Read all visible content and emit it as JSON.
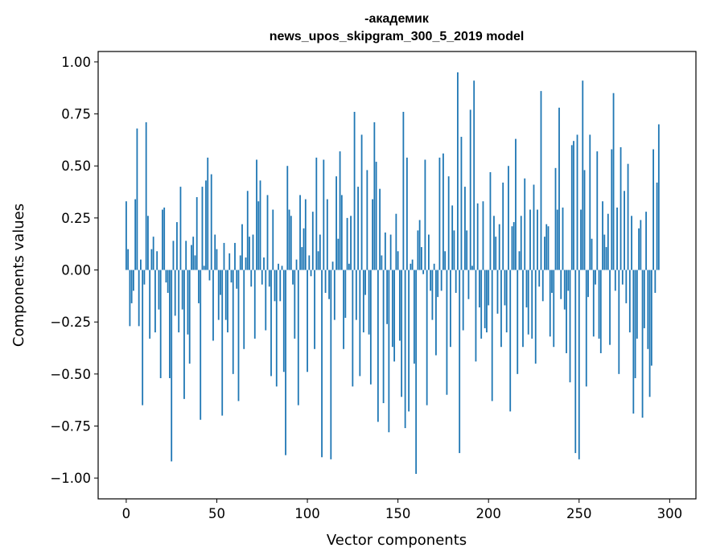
{
  "chart_data": {
    "type": "bar",
    "title_line1": "-академик",
    "title_line2": "news_upos_skipgram_300_5_2019 model",
    "xlabel": "Vector components",
    "ylabel": "Components values",
    "xlim": [
      -15.5,
      314.5
    ],
    "ylim": [
      -1.1,
      1.05
    ],
    "xticks": [
      0,
      50,
      100,
      150,
      200,
      250,
      300
    ],
    "xtick_labels": [
      "0",
      "50",
      "100",
      "150",
      "200",
      "250",
      "300"
    ],
    "yticks": [
      -1.0,
      -0.75,
      -0.5,
      -0.25,
      0.0,
      0.25,
      0.5,
      0.75,
      1.0
    ],
    "ytick_labels": [
      "−1.00",
      "−0.75",
      "−0.50",
      "−0.25",
      "0.00",
      "0.25",
      "0.50",
      "0.75",
      "1.00"
    ],
    "bar_color": "#1f77b4",
    "grid": false,
    "values": [
      0.33,
      0.1,
      -0.27,
      -0.16,
      -0.1,
      0.34,
      0.68,
      -0.27,
      0.05,
      -0.65,
      -0.07,
      0.71,
      0.26,
      -0.33,
      0.1,
      0.16,
      -0.3,
      0.09,
      -0.19,
      -0.52,
      0.29,
      0.3,
      -0.06,
      -0.11,
      -0.52,
      -0.92,
      0.14,
      -0.22,
      0.23,
      -0.3,
      0.4,
      -0.19,
      -0.62,
      0.14,
      -0.31,
      -0.45,
      0.12,
      0.16,
      0.07,
      0.35,
      -0.16,
      -0.72,
      0.4,
      0.02,
      0.43,
      0.54,
      -0.05,
      0.46,
      -0.34,
      0.17,
      0.1,
      -0.24,
      -0.12,
      -0.7,
      0.13,
      -0.24,
      -0.3,
      0.08,
      -0.06,
      -0.5,
      0.13,
      -0.09,
      -0.63,
      0.07,
      0.22,
      -0.38,
      0.06,
      0.38,
      0.16,
      -0.08,
      0.17,
      -0.33,
      0.53,
      0.33,
      0.43,
      -0.07,
      0.06,
      -0.29,
      0.36,
      -0.08,
      -0.51,
      0.29,
      -0.15,
      -0.56,
      0.03,
      -0.15,
      0.02,
      -0.49,
      -0.89,
      0.5,
      0.29,
      0.26,
      -0.07,
      -0.33,
      0.05,
      -0.65,
      0.36,
      0.11,
      0.2,
      0.34,
      -0.49,
      0.07,
      -0.03,
      0.28,
      -0.38,
      0.54,
      0.09,
      0.17,
      -0.9,
      0.53,
      -0.11,
      0.34,
      -0.14,
      -0.91,
      0.04,
      -0.24,
      0.45,
      0.15,
      0.57,
      0.36,
      -0.38,
      -0.23,
      0.25,
      0.03,
      0.26,
      -0.56,
      0.76,
      -0.24,
      0.4,
      -0.51,
      0.65,
      -0.3,
      -0.12,
      0.48,
      -0.31,
      -0.55,
      0.34,
      0.71,
      0.52,
      -0.73,
      0.39,
      0.07,
      -0.64,
      0.18,
      -0.26,
      -0.78,
      0.17,
      -0.37,
      -0.44,
      0.27,
      0.09,
      -0.34,
      -0.61,
      0.76,
      -0.76,
      0.54,
      -0.68,
      0.03,
      0.05,
      -0.45,
      -0.98,
      0.19,
      0.24,
      0.11,
      -0.02,
      0.53,
      -0.65,
      0.17,
      -0.1,
      -0.24,
      0.03,
      -0.41,
      -0.13,
      0.54,
      -0.1,
      0.56,
      0.09,
      -0.6,
      0.45,
      -0.37,
      0.31,
      0.19,
      -0.11,
      0.95,
      -0.88,
      0.64,
      -0.29,
      0.4,
      0.19,
      -0.14,
      0.77,
      0.02,
      0.91,
      -0.44,
      0.32,
      -0.18,
      -0.33,
      0.33,
      -0.28,
      -0.3,
      -0.17,
      0.47,
      -0.63,
      0.26,
      0.16,
      -0.21,
      0.22,
      -0.37,
      0.42,
      -0.17,
      -0.3,
      0.5,
      -0.68,
      0.21,
      0.23,
      0.63,
      -0.5,
      0.09,
      0.26,
      -0.37,
      0.44,
      -0.18,
      -0.31,
      0.29,
      -0.33,
      0.41,
      -0.45,
      0.29,
      -0.08,
      0.86,
      -0.15,
      0.16,
      0.22,
      0.21,
      -0.32,
      -0.11,
      -0.37,
      0.49,
      0.29,
      0.78,
      -0.14,
      0.3,
      -0.19,
      -0.4,
      -0.1,
      -0.54,
      0.6,
      0.62,
      -0.88,
      0.65,
      -0.91,
      0.29,
      0.91,
      0.48,
      -0.56,
      -0.13,
      0.65,
      0.15,
      -0.32,
      -0.07,
      0.57,
      -0.33,
      -0.4,
      0.33,
      0.17,
      0.11,
      0.27,
      -0.36,
      0.58,
      0.85,
      -0.1,
      0.3,
      -0.5,
      0.59,
      -0.07,
      0.38,
      -0.16,
      0.51,
      -0.3,
      0.26,
      -0.69,
      -0.52,
      -0.33,
      0.2,
      0.24,
      -0.71,
      -0.28,
      0.28,
      -0.38,
      -0.61,
      -0.46,
      0.58,
      -0.11,
      0.42,
      0.7
    ]
  }
}
